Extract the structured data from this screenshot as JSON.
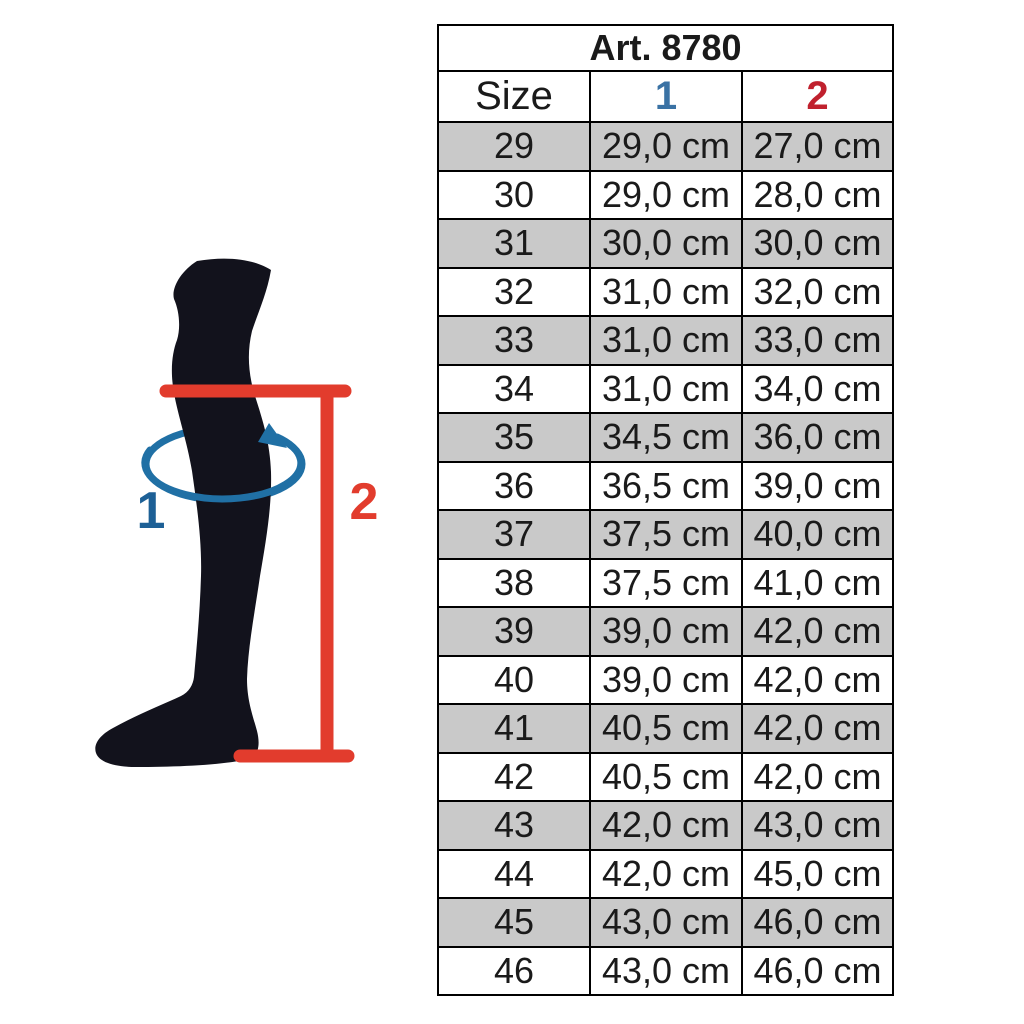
{
  "chart_data": {
    "type": "table",
    "title": "Art. 8780",
    "columns": [
      "Size",
      "1",
      "2"
    ],
    "rows": [
      [
        "29",
        "29,0 cm",
        "27,0 cm"
      ],
      [
        "30",
        "29,0 cm",
        "28,0 cm"
      ],
      [
        "31",
        "30,0 cm",
        "30,0 cm"
      ],
      [
        "32",
        "31,0 cm",
        "32,0 cm"
      ],
      [
        "33",
        "31,0 cm",
        "33,0 cm"
      ],
      [
        "34",
        "31,0 cm",
        "34,0 cm"
      ],
      [
        "35",
        "34,5 cm",
        "36,0 cm"
      ],
      [
        "36",
        "36,5 cm",
        "39,0 cm"
      ],
      [
        "37",
        "37,5 cm",
        "40,0 cm"
      ],
      [
        "38",
        "37,5 cm",
        "41,0 cm"
      ],
      [
        "39",
        "39,0 cm",
        "42,0 cm"
      ],
      [
        "40",
        "39,0 cm",
        "42,0 cm"
      ],
      [
        "41",
        "40,5 cm",
        "42,0 cm"
      ],
      [
        "42",
        "40,5 cm",
        "42,0 cm"
      ],
      [
        "43",
        "42,0 cm",
        "43,0 cm"
      ],
      [
        "44",
        "42,0 cm",
        "45,0 cm"
      ],
      [
        "45",
        "43,0 cm",
        "46,0 cm"
      ],
      [
        "46",
        "43,0 cm",
        "46,0 cm"
      ]
    ],
    "layout": {
      "first_data_row_shaded": true,
      "stripe_alternating": true
    }
  },
  "diagram": {
    "label_circumference": "1",
    "label_height": "2"
  },
  "colors": {
    "header_blue": "#3a72a4",
    "header_red": "#c0212e",
    "diagram_blue": "#2070a5",
    "diagram_blue_dark": "#1d6096",
    "diagram_red": "#e23c2d",
    "stripe_gray": "#c9c9c9",
    "border_black": "#000000"
  }
}
